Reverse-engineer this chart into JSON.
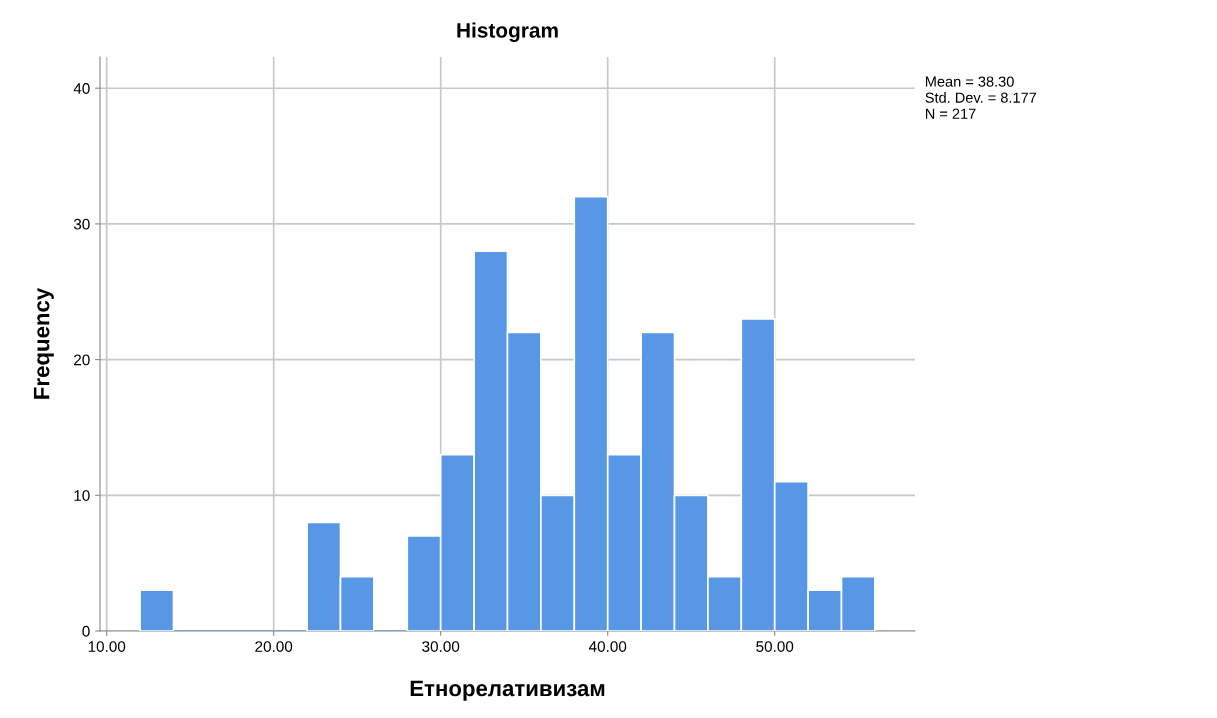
{
  "chart_data": {
    "type": "histogram",
    "title": "Histogram",
    "xlabel": "Етнорелативизам",
    "ylabel": "Frequency",
    "bins": [
      12,
      14,
      16,
      18,
      20,
      22,
      24,
      26,
      28,
      30,
      32,
      34,
      36,
      38,
      40,
      42,
      44,
      46,
      48,
      50,
      52,
      54,
      56
    ],
    "values": [
      3,
      0,
      0,
      0,
      0,
      8,
      4,
      0,
      7,
      13,
      28,
      22,
      10,
      32,
      13,
      22,
      10,
      4,
      23,
      11,
      3,
      4
    ],
    "color": "#5896e6",
    "xlim": [
      9.6,
      58.4
    ],
    "xticks": [
      {
        "value": 10,
        "label": "10.00"
      },
      {
        "value": 20,
        "label": "20.00"
      },
      {
        "value": 30,
        "label": "30.00"
      },
      {
        "value": 40,
        "label": "40.00"
      },
      {
        "value": 50,
        "label": "50.00"
      }
    ],
    "ylim": [
      0,
      42.3
    ],
    "yticks": [
      0,
      10,
      20,
      30,
      40
    ],
    "grid": true,
    "annotations": [
      "Mean = 38.30",
      "Std. Dev. = 8.177",
      "N = 217"
    ]
  }
}
